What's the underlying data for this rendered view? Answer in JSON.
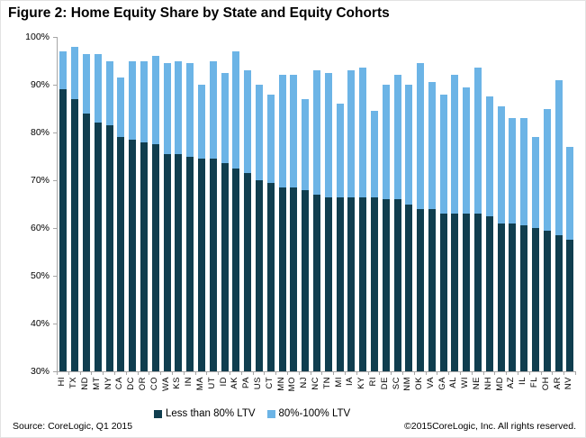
{
  "title": "Figure 2: Home Equity Share by State and Equity Cohorts",
  "source": "Source: CoreLogic, Q1 2015",
  "copyright": "©2015CoreLogic, Inc. All rights reserved.",
  "colors": {
    "dark": "#103e4f",
    "light": "#6cb4e6",
    "axis": "#a6a6a6"
  },
  "legend": [
    {
      "label": "Less than 80% LTV",
      "color_key": "dark"
    },
    {
      "label": "80%-100% LTV",
      "color_key": "light"
    }
  ],
  "chart_data": {
    "type": "bar",
    "stacked": true,
    "title": "Figure 2: Home Equity Share by State and Equity Cohorts",
    "categories": [
      "HI",
      "TX",
      "ND",
      "MT",
      "NY",
      "CA",
      "DC",
      "OR",
      "CO",
      "WA",
      "KS",
      "IN",
      "MA",
      "UT",
      "ID",
      "AK",
      "PA",
      "US",
      "CT",
      "MN",
      "MO",
      "NJ",
      "NC",
      "TN",
      "MI",
      "IA",
      "KY",
      "RI",
      "DE",
      "SC",
      "NM",
      "OK",
      "VA",
      "GA",
      "AL",
      "WI",
      "NE",
      "NH",
      "MD",
      "AZ",
      "IL",
      "FL",
      "OH",
      "AR",
      "NV"
    ],
    "series": [
      {
        "name": "Less than 80% LTV",
        "color": "#103e4f",
        "values": [
          89,
          87,
          84,
          82,
          81.5,
          79,
          78.5,
          78,
          77.5,
          75.5,
          75.5,
          75,
          74.5,
          74.5,
          73.5,
          72.5,
          71.5,
          70,
          69.5,
          68.5,
          68.5,
          68,
          67,
          66.5,
          66.5,
          66.5,
          66.5,
          66.5,
          66,
          66,
          65,
          64,
          64,
          63,
          63,
          63,
          63,
          62.5,
          61,
          61,
          60.5,
          60,
          59.5,
          58.5,
          57.5
        ]
      },
      {
        "name": "80%-100% LTV",
        "color": "#6cb4e6",
        "values": [
          8,
          11,
          12.5,
          14.5,
          13.5,
          12.5,
          16.5,
          17,
          18.5,
          19,
          19.5,
          19.5,
          15.5,
          20.5,
          19,
          24.5,
          21.5,
          20,
          18.5,
          23.5,
          23.5,
          19,
          26,
          26,
          19.5,
          26.5,
          27,
          18,
          24,
          26,
          25,
          30.5,
          26.5,
          25,
          29,
          26.5,
          30.5,
          25,
          24.5,
          22,
          22.5,
          19,
          25.5,
          32.5,
          19.5
        ]
      }
    ],
    "totals": [
      97,
      98,
      96.5,
      96.5,
      95,
      91.5,
      95,
      95,
      96,
      94.5,
      95,
      94.5,
      90,
      95,
      92.5,
      97,
      93,
      90,
      88,
      92,
      92,
      87,
      93,
      92.5,
      86,
      93,
      93.5,
      84.5,
      90,
      92,
      90,
      94.5,
      90.5,
      88,
      92,
      89.5,
      93.5,
      87.5,
      85.5,
      83,
      83,
      79,
      85,
      91,
      77
    ],
    "xlabel": "",
    "ylabel": "",
    "ylim": [
      30,
      100
    ],
    "y_ticks": [
      "100%",
      "90%",
      "80%",
      "70%",
      "60%",
      "50%",
      "40%",
      "30%"
    ],
    "grid": false,
    "legend_position": "bottom"
  }
}
